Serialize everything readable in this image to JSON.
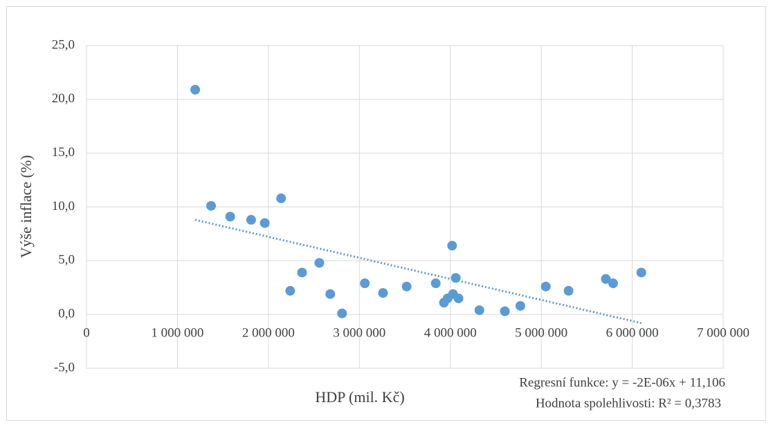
{
  "chart_data": {
    "type": "scatter",
    "x_label": "HDP (mil. Kč)",
    "y_label": "Výše inflace (%)",
    "annotations": [
      "Regresní funkce: y = -2E-06x + 11,106",
      "Hodnota spolehlivosti: R² = 0,3783"
    ],
    "color": "#5b9bd5",
    "grid": true,
    "x": [
      1195000,
      1370000,
      1580000,
      1810000,
      1960000,
      2140000,
      2240000,
      2370000,
      2560000,
      2680000,
      2810000,
      3060000,
      3260000,
      3520000,
      3840000,
      3930000,
      3970000,
      4020000,
      4030000,
      4060000,
      4090000,
      4320000,
      4600000,
      4770000,
      5050000,
      5300000,
      5710000,
      5790000,
      6100000
    ],
    "values": [
      20.9,
      10.1,
      9.1,
      8.8,
      8.5,
      10.8,
      2.2,
      3.9,
      4.8,
      1.9,
      0.1,
      2.9,
      2.0,
      2.6,
      2.9,
      1.1,
      1.5,
      6.4,
      1.9,
      3.4,
      1.5,
      0.4,
      0.3,
      0.8,
      2.6,
      2.2,
      3.3,
      2.9,
      3.9
    ],
    "trendline": {
      "x": [
        1195000,
        6100000
      ],
      "values": [
        8.8,
        -0.8
      ]
    },
    "xlim": [
      0,
      7000000
    ],
    "xticks": [
      0,
      {
        "value": 1000000,
        "label": "1 000 000"
      },
      {
        "value": 2000000,
        "label": "2 000 000"
      },
      {
        "value": 3000000,
        "label": "3 000 000"
      },
      {
        "value": 4000000,
        "label": "4 000 000"
      },
      {
        "value": 5000000,
        "label": "5 000 000"
      },
      {
        "value": 6000000,
        "label": "6 000 000"
      },
      {
        "value": 7000000,
        "label": "7 000 000"
      }
    ],
    "ylim": [
      -5,
      25
    ],
    "yticks": [
      {
        "value": -5,
        "label": "-5,0"
      },
      {
        "value": 0,
        "label": "0,0"
      },
      {
        "value": 5,
        "label": "5,0"
      },
      {
        "value": 10,
        "label": "10,0"
      },
      {
        "value": 15,
        "label": "15,0"
      },
      {
        "value": 20,
        "label": "20,0"
      },
      {
        "value": 25,
        "label": "25,0"
      }
    ]
  }
}
